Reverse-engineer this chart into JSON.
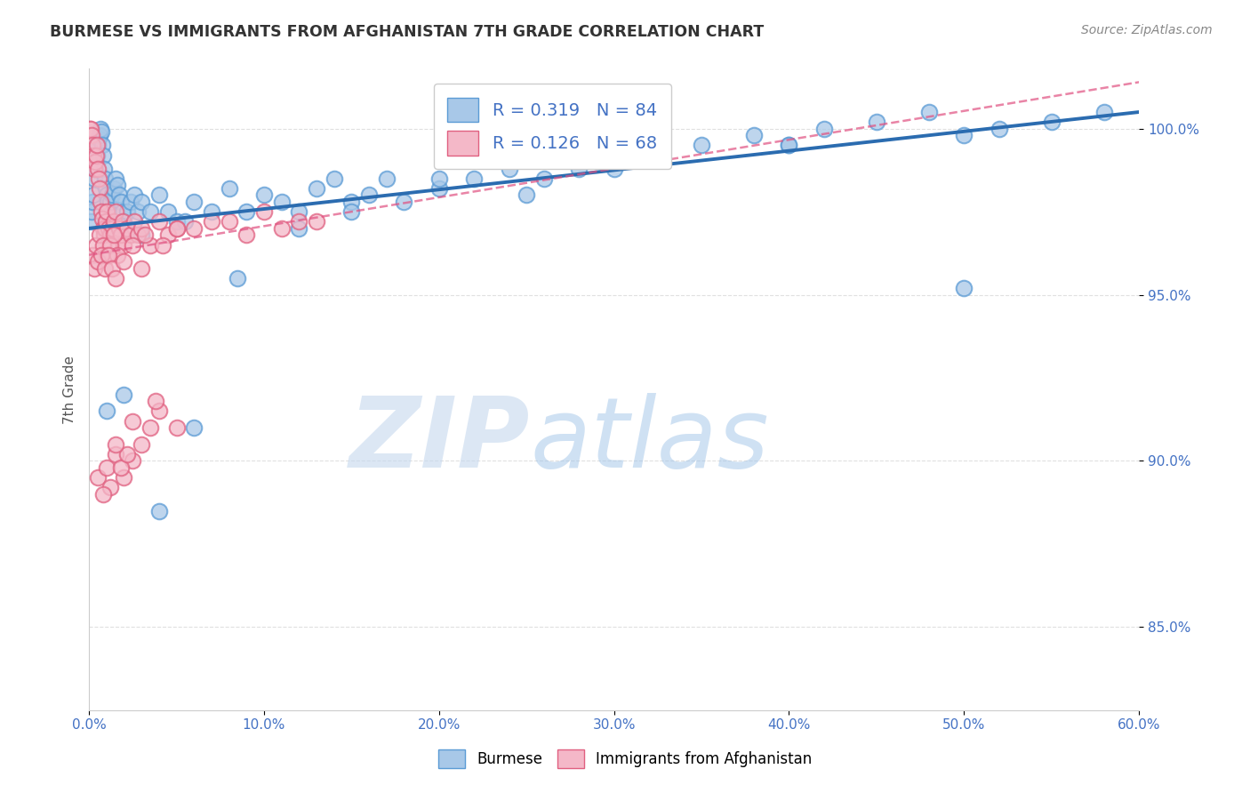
{
  "title": "BURMESE VS IMMIGRANTS FROM AFGHANISTAN 7TH GRADE CORRELATION CHART",
  "source": "Source: ZipAtlas.com",
  "ylabel": "7th Grade",
  "xlim": [
    0.0,
    60.0
  ],
  "ylim": [
    82.5,
    101.8
  ],
  "blue_R": 0.319,
  "blue_N": 84,
  "pink_R": 0.126,
  "pink_N": 68,
  "blue_color": "#a8c8e8",
  "blue_edge_color": "#5b9bd5",
  "pink_color": "#f4b8c8",
  "pink_edge_color": "#e06080",
  "blue_line_color": "#2b6cb0",
  "pink_line_color": "#e05080",
  "watermark_ZIP_color": "#c5d8ee",
  "watermark_atlas_color": "#a0c4e8",
  "legend_label_blue": "Burmese",
  "legend_label_pink": "Immigrants from Afghanistan",
  "blue_x": [
    0.1,
    0.15,
    0.2,
    0.25,
    0.3,
    0.35,
    0.4,
    0.45,
    0.5,
    0.55,
    0.6,
    0.65,
    0.7,
    0.75,
    0.8,
    0.85,
    0.9,
    0.95,
    1.0,
    1.05,
    1.1,
    1.2,
    1.3,
    1.4,
    1.5,
    1.6,
    1.7,
    1.8,
    1.9,
    2.0,
    2.2,
    2.4,
    2.6,
    2.8,
    3.0,
    3.5,
    4.0,
    4.5,
    5.0,
    6.0,
    7.0,
    8.0,
    9.0,
    10.0,
    11.0,
    12.0,
    13.0,
    14.0,
    15.0,
    16.0,
    17.0,
    18.0,
    20.0,
    22.0,
    24.0,
    26.0,
    28.0,
    30.0,
    32.0,
    35.0,
    38.0,
    40.0,
    42.0,
    45.0,
    48.0,
    50.0,
    52.0,
    55.0,
    58.0,
    3.0,
    5.5,
    8.5,
    12.0,
    15.0,
    20.0,
    25.0,
    30.0,
    40.0,
    50.0,
    1.0,
    2.0,
    4.0,
    6.0
  ],
  "blue_y": [
    97.2,
    97.5,
    97.8,
    98.0,
    98.5,
    98.8,
    99.0,
    99.2,
    99.5,
    99.7,
    99.8,
    100.0,
    99.9,
    99.5,
    99.2,
    98.8,
    98.5,
    98.2,
    98.0,
    97.8,
    97.5,
    97.8,
    98.0,
    98.2,
    98.5,
    98.3,
    98.0,
    97.8,
    97.5,
    97.2,
    97.5,
    97.8,
    98.0,
    97.5,
    97.8,
    97.5,
    98.0,
    97.5,
    97.2,
    97.8,
    97.5,
    98.2,
    97.5,
    98.0,
    97.8,
    97.5,
    98.2,
    98.5,
    97.8,
    98.0,
    98.5,
    97.8,
    98.2,
    98.5,
    98.8,
    98.5,
    98.8,
    99.0,
    99.2,
    99.5,
    99.8,
    99.5,
    100.0,
    100.2,
    100.5,
    99.8,
    100.0,
    100.2,
    100.5,
    96.8,
    97.2,
    95.5,
    97.0,
    97.5,
    98.5,
    98.0,
    98.8,
    99.5,
    95.2,
    91.5,
    92.0,
    88.5,
    91.0
  ],
  "pink_x": [
    0.05,
    0.1,
    0.15,
    0.2,
    0.25,
    0.3,
    0.35,
    0.4,
    0.45,
    0.5,
    0.55,
    0.6,
    0.65,
    0.7,
    0.75,
    0.8,
    0.85,
    0.9,
    0.95,
    1.0,
    1.1,
    1.2,
    1.3,
    1.4,
    1.5,
    1.6,
    1.7,
    1.8,
    1.9,
    2.0,
    2.2,
    2.4,
    2.6,
    2.8,
    3.0,
    3.5,
    4.0,
    4.5,
    5.0,
    0.2,
    0.4,
    0.6,
    0.8,
    1.0,
    1.2,
    1.4,
    1.6,
    0.3,
    0.5,
    0.7,
    0.9,
    1.1,
    1.3,
    2.5,
    3.2,
    4.2,
    6.0,
    8.0,
    10.0,
    12.0,
    1.5,
    2.0,
    3.0,
    5.0,
    7.0,
    9.0,
    11.0,
    13.0
  ],
  "pink_y": [
    100.0,
    100.0,
    99.8,
    99.5,
    99.2,
    98.8,
    99.0,
    99.2,
    99.5,
    98.8,
    98.5,
    98.2,
    97.8,
    97.5,
    97.3,
    97.0,
    96.8,
    97.0,
    97.2,
    97.5,
    97.0,
    96.8,
    97.0,
    97.2,
    97.5,
    96.5,
    97.0,
    96.8,
    97.2,
    96.5,
    97.0,
    96.8,
    97.2,
    96.8,
    97.0,
    96.5,
    97.2,
    96.8,
    97.0,
    96.2,
    96.5,
    96.8,
    96.5,
    96.2,
    96.5,
    96.8,
    96.2,
    95.8,
    96.0,
    96.2,
    95.8,
    96.2,
    95.8,
    96.5,
    96.8,
    96.5,
    97.0,
    97.2,
    97.5,
    97.2,
    95.5,
    96.0,
    95.8,
    97.0,
    97.2,
    96.8,
    97.0,
    97.2
  ],
  "pink_low_x": [
    0.5,
    1.0,
    1.5,
    2.0,
    2.5,
    3.0,
    3.5,
    4.0,
    5.0,
    1.2,
    1.8,
    2.2,
    0.8,
    1.5,
    2.5,
    3.8
  ],
  "pink_low_y": [
    89.5,
    89.8,
    90.2,
    89.5,
    90.0,
    90.5,
    91.0,
    91.5,
    91.0,
    89.2,
    89.8,
    90.2,
    89.0,
    90.5,
    91.2,
    91.8
  ],
  "blue_trend_x0": 0.0,
  "blue_trend_y0": 97.0,
  "blue_trend_x1": 60.0,
  "blue_trend_y1": 100.5,
  "pink_trend_x0": 0.0,
  "pink_trend_y0": 96.2,
  "pink_trend_x1": 15.0,
  "pink_trend_y1": 97.5
}
